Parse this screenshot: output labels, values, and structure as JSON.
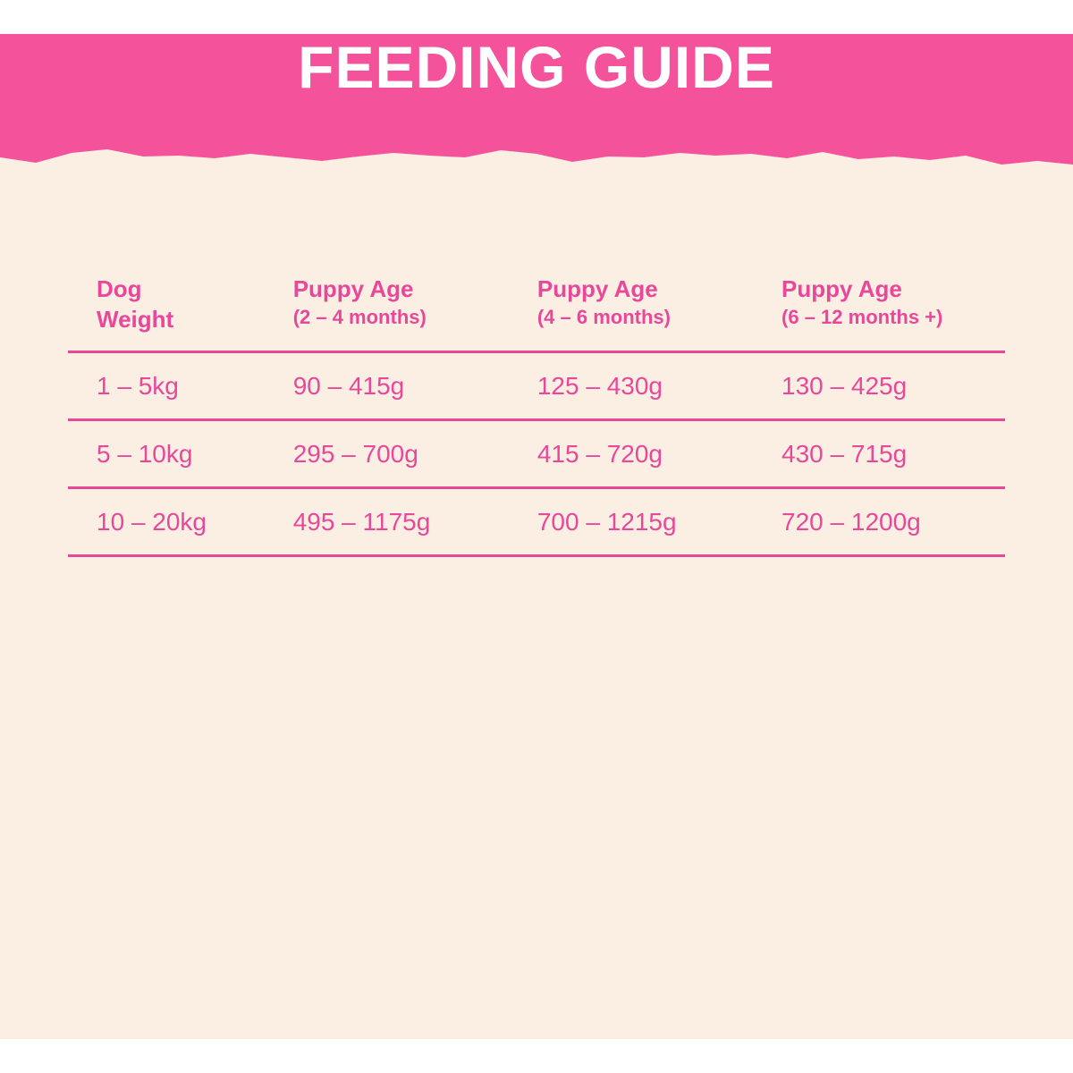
{
  "banner": {
    "title": "FEEDING GUIDE",
    "color": "#f4539c"
  },
  "background_color": "#fbeee2",
  "text_color": "#e8489a",
  "table": {
    "headers": [
      {
        "title": "Dog",
        "title2": "Weight",
        "sub": ""
      },
      {
        "title": "Puppy Age",
        "title2": "",
        "sub": "(2 – 4 months)"
      },
      {
        "title": "Puppy Age",
        "title2": "",
        "sub": "(4 – 6 months)"
      },
      {
        "title": "Puppy Age",
        "title2": "",
        "sub": "(6 – 12 months +)"
      }
    ],
    "rows": [
      [
        "1 – 5kg",
        "90 – 415g",
        "125 – 430g",
        "130 – 425g"
      ],
      [
        "5 – 10kg",
        "295 – 700g",
        "415 – 720g",
        "430 – 715g"
      ],
      [
        "10 – 20kg",
        "495 – 1175g",
        "700 – 1215g",
        "720 – 1200g"
      ]
    ]
  }
}
